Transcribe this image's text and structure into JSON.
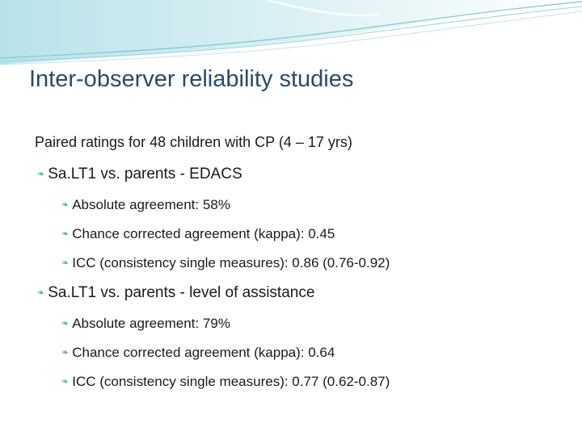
{
  "slide": {
    "title": "Inter-observer reliability studies",
    "intro": "Paired ratings for 48 children with CP (4 – 17 yrs)",
    "sections": [
      {
        "heading": "Sa.LT1 vs. parents - EDACS",
        "items": [
          "Absolute agreement: 58%",
          "Chance corrected agreement (kappa): 0.45",
          "ICC (consistency single measures): 0.86 (0.76-0.92)"
        ]
      },
      {
        "heading": "Sa.LT1 vs. parents - level of assistance",
        "items": [
          "Absolute agreement: 79%",
          "Chance corrected agreement (kappa): 0.64",
          "ICC (consistency single measures): 0.77 (0.62-0.87)"
        ]
      }
    ]
  },
  "theme": {
    "accent": "#4fa9b7",
    "title_color": "#2a4a6c",
    "wave_light": "#d6eef3",
    "wave_mid": "#a9d9e3"
  },
  "icons": {
    "bullet": "wave-bullet-icon"
  }
}
